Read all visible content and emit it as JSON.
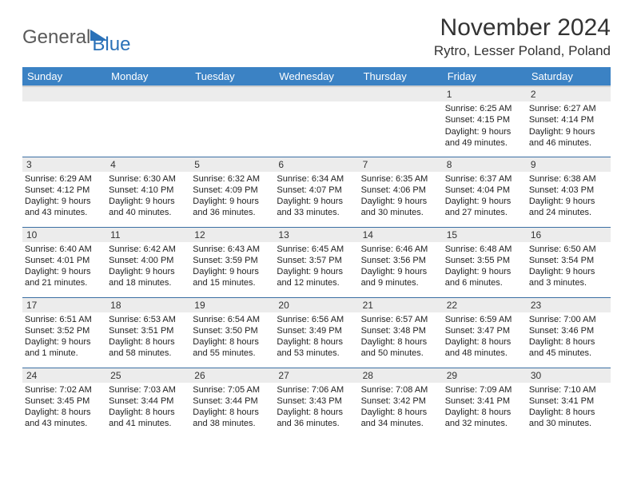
{
  "brand": {
    "part1": "General",
    "part2": "Blue"
  },
  "title": "November 2024",
  "location": "Rytro, Lesser Poland, Poland",
  "colors": {
    "header_bg": "#3b82c4",
    "header_text": "#ffffff",
    "daynum_bg": "#ececec",
    "row_border": "#3b6fa3",
    "brand_gray": "#5a5a5a",
    "brand_blue": "#2a71b8"
  },
  "daysOfWeek": [
    "Sunday",
    "Monday",
    "Tuesday",
    "Wednesday",
    "Thursday",
    "Friday",
    "Saturday"
  ],
  "weeks": [
    [
      {
        "n": "",
        "sr": "",
        "ss": "",
        "dl": ""
      },
      {
        "n": "",
        "sr": "",
        "ss": "",
        "dl": ""
      },
      {
        "n": "",
        "sr": "",
        "ss": "",
        "dl": ""
      },
      {
        "n": "",
        "sr": "",
        "ss": "",
        "dl": ""
      },
      {
        "n": "",
        "sr": "",
        "ss": "",
        "dl": ""
      },
      {
        "n": "1",
        "sr": "Sunrise: 6:25 AM",
        "ss": "Sunset: 4:15 PM",
        "dl": "Daylight: 9 hours and 49 minutes."
      },
      {
        "n": "2",
        "sr": "Sunrise: 6:27 AM",
        "ss": "Sunset: 4:14 PM",
        "dl": "Daylight: 9 hours and 46 minutes."
      }
    ],
    [
      {
        "n": "3",
        "sr": "Sunrise: 6:29 AM",
        "ss": "Sunset: 4:12 PM",
        "dl": "Daylight: 9 hours and 43 minutes."
      },
      {
        "n": "4",
        "sr": "Sunrise: 6:30 AM",
        "ss": "Sunset: 4:10 PM",
        "dl": "Daylight: 9 hours and 40 minutes."
      },
      {
        "n": "5",
        "sr": "Sunrise: 6:32 AM",
        "ss": "Sunset: 4:09 PM",
        "dl": "Daylight: 9 hours and 36 minutes."
      },
      {
        "n": "6",
        "sr": "Sunrise: 6:34 AM",
        "ss": "Sunset: 4:07 PM",
        "dl": "Daylight: 9 hours and 33 minutes."
      },
      {
        "n": "7",
        "sr": "Sunrise: 6:35 AM",
        "ss": "Sunset: 4:06 PM",
        "dl": "Daylight: 9 hours and 30 minutes."
      },
      {
        "n": "8",
        "sr": "Sunrise: 6:37 AM",
        "ss": "Sunset: 4:04 PM",
        "dl": "Daylight: 9 hours and 27 minutes."
      },
      {
        "n": "9",
        "sr": "Sunrise: 6:38 AM",
        "ss": "Sunset: 4:03 PM",
        "dl": "Daylight: 9 hours and 24 minutes."
      }
    ],
    [
      {
        "n": "10",
        "sr": "Sunrise: 6:40 AM",
        "ss": "Sunset: 4:01 PM",
        "dl": "Daylight: 9 hours and 21 minutes."
      },
      {
        "n": "11",
        "sr": "Sunrise: 6:42 AM",
        "ss": "Sunset: 4:00 PM",
        "dl": "Daylight: 9 hours and 18 minutes."
      },
      {
        "n": "12",
        "sr": "Sunrise: 6:43 AM",
        "ss": "Sunset: 3:59 PM",
        "dl": "Daylight: 9 hours and 15 minutes."
      },
      {
        "n": "13",
        "sr": "Sunrise: 6:45 AM",
        "ss": "Sunset: 3:57 PM",
        "dl": "Daylight: 9 hours and 12 minutes."
      },
      {
        "n": "14",
        "sr": "Sunrise: 6:46 AM",
        "ss": "Sunset: 3:56 PM",
        "dl": "Daylight: 9 hours and 9 minutes."
      },
      {
        "n": "15",
        "sr": "Sunrise: 6:48 AM",
        "ss": "Sunset: 3:55 PM",
        "dl": "Daylight: 9 hours and 6 minutes."
      },
      {
        "n": "16",
        "sr": "Sunrise: 6:50 AM",
        "ss": "Sunset: 3:54 PM",
        "dl": "Daylight: 9 hours and 3 minutes."
      }
    ],
    [
      {
        "n": "17",
        "sr": "Sunrise: 6:51 AM",
        "ss": "Sunset: 3:52 PM",
        "dl": "Daylight: 9 hours and 1 minute."
      },
      {
        "n": "18",
        "sr": "Sunrise: 6:53 AM",
        "ss": "Sunset: 3:51 PM",
        "dl": "Daylight: 8 hours and 58 minutes."
      },
      {
        "n": "19",
        "sr": "Sunrise: 6:54 AM",
        "ss": "Sunset: 3:50 PM",
        "dl": "Daylight: 8 hours and 55 minutes."
      },
      {
        "n": "20",
        "sr": "Sunrise: 6:56 AM",
        "ss": "Sunset: 3:49 PM",
        "dl": "Daylight: 8 hours and 53 minutes."
      },
      {
        "n": "21",
        "sr": "Sunrise: 6:57 AM",
        "ss": "Sunset: 3:48 PM",
        "dl": "Daylight: 8 hours and 50 minutes."
      },
      {
        "n": "22",
        "sr": "Sunrise: 6:59 AM",
        "ss": "Sunset: 3:47 PM",
        "dl": "Daylight: 8 hours and 48 minutes."
      },
      {
        "n": "23",
        "sr": "Sunrise: 7:00 AM",
        "ss": "Sunset: 3:46 PM",
        "dl": "Daylight: 8 hours and 45 minutes."
      }
    ],
    [
      {
        "n": "24",
        "sr": "Sunrise: 7:02 AM",
        "ss": "Sunset: 3:45 PM",
        "dl": "Daylight: 8 hours and 43 minutes."
      },
      {
        "n": "25",
        "sr": "Sunrise: 7:03 AM",
        "ss": "Sunset: 3:44 PM",
        "dl": "Daylight: 8 hours and 41 minutes."
      },
      {
        "n": "26",
        "sr": "Sunrise: 7:05 AM",
        "ss": "Sunset: 3:44 PM",
        "dl": "Daylight: 8 hours and 38 minutes."
      },
      {
        "n": "27",
        "sr": "Sunrise: 7:06 AM",
        "ss": "Sunset: 3:43 PM",
        "dl": "Daylight: 8 hours and 36 minutes."
      },
      {
        "n": "28",
        "sr": "Sunrise: 7:08 AM",
        "ss": "Sunset: 3:42 PM",
        "dl": "Daylight: 8 hours and 34 minutes."
      },
      {
        "n": "29",
        "sr": "Sunrise: 7:09 AM",
        "ss": "Sunset: 3:41 PM",
        "dl": "Daylight: 8 hours and 32 minutes."
      },
      {
        "n": "30",
        "sr": "Sunrise: 7:10 AM",
        "ss": "Sunset: 3:41 PM",
        "dl": "Daylight: 8 hours and 30 minutes."
      }
    ]
  ]
}
